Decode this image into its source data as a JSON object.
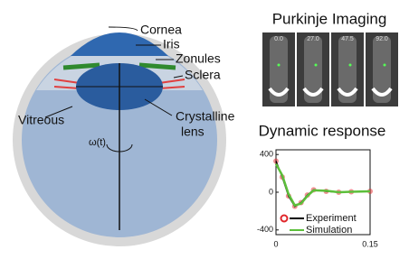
{
  "eye": {
    "labels": {
      "cornea": "Cornea",
      "iris": "Iris",
      "zonules": "Zonules",
      "sclera": "Sclera",
      "vitreous": "Vitreous",
      "crystalline_lens": [
        "Crystalline",
        "lens"
      ],
      "rotation": "ω(t)"
    }
  },
  "purkinje": {
    "title": "Purkinje Imaging",
    "frames": [
      "0.0",
      "27.0",
      "47.5",
      "92.0"
    ]
  },
  "chart": {
    "type": "line",
    "title": "Dynamic response",
    "x": [
      0,
      0.01,
      0.02,
      0.03,
      0.04,
      0.05,
      0.06,
      0.08,
      0.1,
      0.12,
      0.15
    ],
    "series": [
      {
        "name": "Experiment",
        "color": "#000000",
        "marker_color": "#e0262a",
        "values": [
          330,
          160,
          -40,
          -150,
          -110,
          -30,
          25,
          10,
          0,
          5,
          10
        ]
      },
      {
        "name": "Simulation",
        "color": "#5cbf3a",
        "values": [
          300,
          180,
          -20,
          -140,
          -120,
          -40,
          20,
          15,
          0,
          5,
          10
        ]
      }
    ],
    "xlim": [
      0,
      0.15
    ],
    "ylim": [
      -450,
      450
    ],
    "xticks": [
      0,
      0.15
    ],
    "yticks": [
      400,
      0,
      -400
    ]
  }
}
